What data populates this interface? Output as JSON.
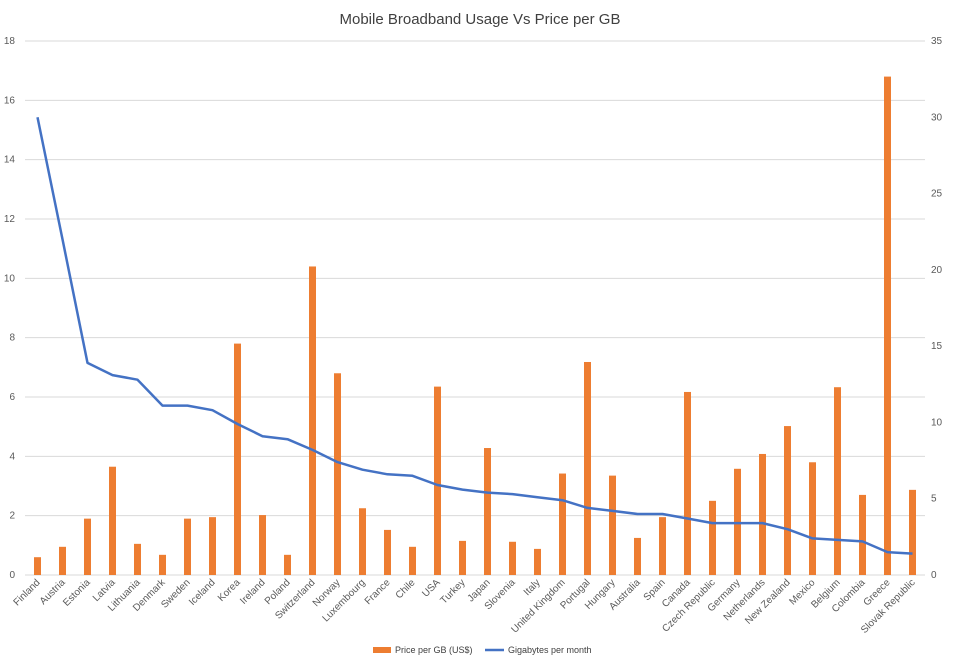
{
  "chart_data": {
    "type": "bar",
    "title": "Mobile Broadband Usage Vs Price per GB",
    "categories": [
      "Finland",
      "Austria",
      "Estonia",
      "Latvia",
      "Lithuania",
      "Denmark",
      "Sweden",
      "Iceland",
      "Korea",
      "Ireland",
      "Poland",
      "Switzerland",
      "Norway",
      "Luxembourg",
      "France",
      "Chile",
      "USA",
      "Turkey",
      "Japan",
      "Slovenia",
      "Italy",
      "United Kingdom",
      "Portugal",
      "Hungary",
      "Australia",
      "Spain",
      "Canada",
      "Czech Republic",
      "Germany",
      "Netherlands",
      "New Zealand",
      "Mexico",
      "Belgium",
      "Colombia",
      "Greece",
      "Slovak Republic"
    ],
    "series": [
      {
        "name": "Price per GB (US$)",
        "type": "bar",
        "axis": "left",
        "color": "#ED7D31",
        "values": [
          0.6,
          0.95,
          1.9,
          3.65,
          1.05,
          0.68,
          1.9,
          1.95,
          7.8,
          2.02,
          0.68,
          10.4,
          6.8,
          2.25,
          1.52,
          0.95,
          6.35,
          1.15,
          4.28,
          1.12,
          0.88,
          3.42,
          7.18,
          3.35,
          1.25,
          1.95,
          6.17,
          2.5,
          3.58,
          4.08,
          5.02,
          3.8,
          6.33,
          2.7,
          16.8,
          2.87
        ]
      },
      {
        "name": "Gigabytes per month",
        "type": "line",
        "axis": "right",
        "color": "#4472C4",
        "values": [
          30.0,
          22.0,
          13.9,
          13.1,
          12.8,
          11.1,
          11.1,
          10.8,
          9.9,
          9.1,
          8.9,
          8.2,
          7.4,
          6.9,
          6.6,
          6.5,
          5.9,
          5.6,
          5.4,
          5.3,
          5.1,
          4.9,
          4.4,
          4.2,
          4.0,
          4.0,
          3.7,
          3.4,
          3.4,
          3.4,
          3.0,
          2.4,
          2.3,
          2.2,
          1.5,
          1.4
        ]
      }
    ],
    "y_left": {
      "min": 0,
      "max": 18,
      "ticks": [
        0,
        2,
        4,
        6,
        8,
        10,
        12,
        14,
        16,
        18
      ]
    },
    "y_right": {
      "min": 0,
      "max": 35,
      "ticks": [
        0,
        5,
        10,
        15,
        20,
        25,
        30,
        35
      ]
    },
    "grid": true,
    "legend": "bottom",
    "xlabel": "",
    "ylabel": ""
  }
}
